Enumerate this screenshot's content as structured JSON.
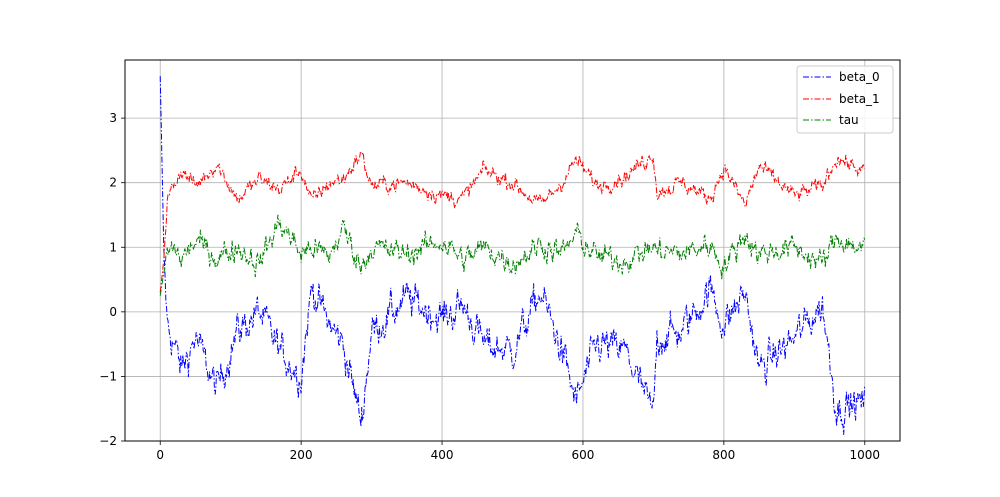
{
  "chart_data": {
    "type": "line",
    "title": "",
    "xlabel": "",
    "ylabel": "",
    "xlim": [
      -50,
      1050
    ],
    "ylim": [
      -2,
      3.9
    ],
    "x_ticks": [
      0,
      200,
      400,
      600,
      800,
      1000
    ],
    "y_ticks": [
      -2,
      -1,
      0,
      1,
      2,
      3
    ],
    "x_tick_labels": [
      "0",
      "200",
      "400",
      "600",
      "800",
      "1000"
    ],
    "y_tick_labels": [
      "−2",
      "−1",
      "0",
      "1",
      "2",
      "3"
    ],
    "grid": true,
    "legend_position": "upper-right",
    "line_style": "dash-dot",
    "n_points": 1001,
    "series": [
      {
        "name": "beta_0",
        "color": "#0000ff",
        "start": 3.65,
        "mean": -0.55,
        "x": [
          0,
          5,
          10,
          20,
          30,
          50,
          80,
          110,
          140,
          170,
          200,
          215,
          240,
          260,
          285,
          300,
          350,
          400,
          430,
          460,
          500,
          540,
          570,
          590,
          620,
          660,
          700,
          705,
          740,
          780,
          800,
          830,
          850,
          900,
          940,
          960,
          1000
        ],
        "y": [
          3.65,
          1.0,
          -0.2,
          -0.5,
          -0.9,
          -0.4,
          -1.2,
          -0.3,
          0.0,
          -0.6,
          -1.0,
          0.4,
          -0.2,
          -0.5,
          -1.7,
          -0.3,
          0.2,
          -0.1,
          0.1,
          -0.5,
          -0.6,
          0.3,
          -0.6,
          -1.4,
          -0.5,
          -0.6,
          -1.6,
          -0.4,
          -0.3,
          0.35,
          -0.2,
          0.3,
          -0.9,
          -0.4,
          0.1,
          -1.5,
          -1.4
        ]
      },
      {
        "name": "beta_1",
        "color": "#ff0000",
        "start": 0.3,
        "mean": 1.98,
        "x": [
          0,
          5,
          10,
          20,
          30,
          50,
          80,
          110,
          140,
          170,
          200,
          215,
          240,
          260,
          285,
          300,
          350,
          400,
          430,
          460,
          500,
          540,
          570,
          590,
          620,
          660,
          700,
          705,
          740,
          780,
          800,
          830,
          850,
          900,
          940,
          960,
          1000
        ],
        "y": [
          0.3,
          0.8,
          1.7,
          2.0,
          2.2,
          1.95,
          2.3,
          1.75,
          2.05,
          1.9,
          2.2,
          1.7,
          2.0,
          2.05,
          2.45,
          1.95,
          2.0,
          1.8,
          1.75,
          2.2,
          2.0,
          1.65,
          2.0,
          2.35,
          1.95,
          2.1,
          2.45,
          1.85,
          2.0,
          1.75,
          2.25,
          1.65,
          2.25,
          1.8,
          1.95,
          2.4,
          2.15
        ]
      },
      {
        "name": "tau",
        "color": "#008000",
        "start": 0.25,
        "mean": 0.93,
        "x": [
          0,
          5,
          10,
          20,
          30,
          50,
          80,
          110,
          140,
          170,
          200,
          215,
          240,
          260,
          285,
          300,
          350,
          400,
          430,
          460,
          500,
          540,
          570,
          590,
          620,
          660,
          700,
          705,
          740,
          780,
          800,
          830,
          850,
          900,
          940,
          960,
          1000
        ],
        "y": [
          0.25,
          0.6,
          0.9,
          1.0,
          0.8,
          1.1,
          0.85,
          1.0,
          0.75,
          1.4,
          0.9,
          1.0,
          0.85,
          1.3,
          0.7,
          1.0,
          0.9,
          1.1,
          0.8,
          1.0,
          0.75,
          1.05,
          0.9,
          1.2,
          0.85,
          0.8,
          1.0,
          0.95,
          0.9,
          1.05,
          0.7,
          1.2,
          0.9,
          1.0,
          0.75,
          1.15,
          0.95
        ]
      }
    ]
  }
}
